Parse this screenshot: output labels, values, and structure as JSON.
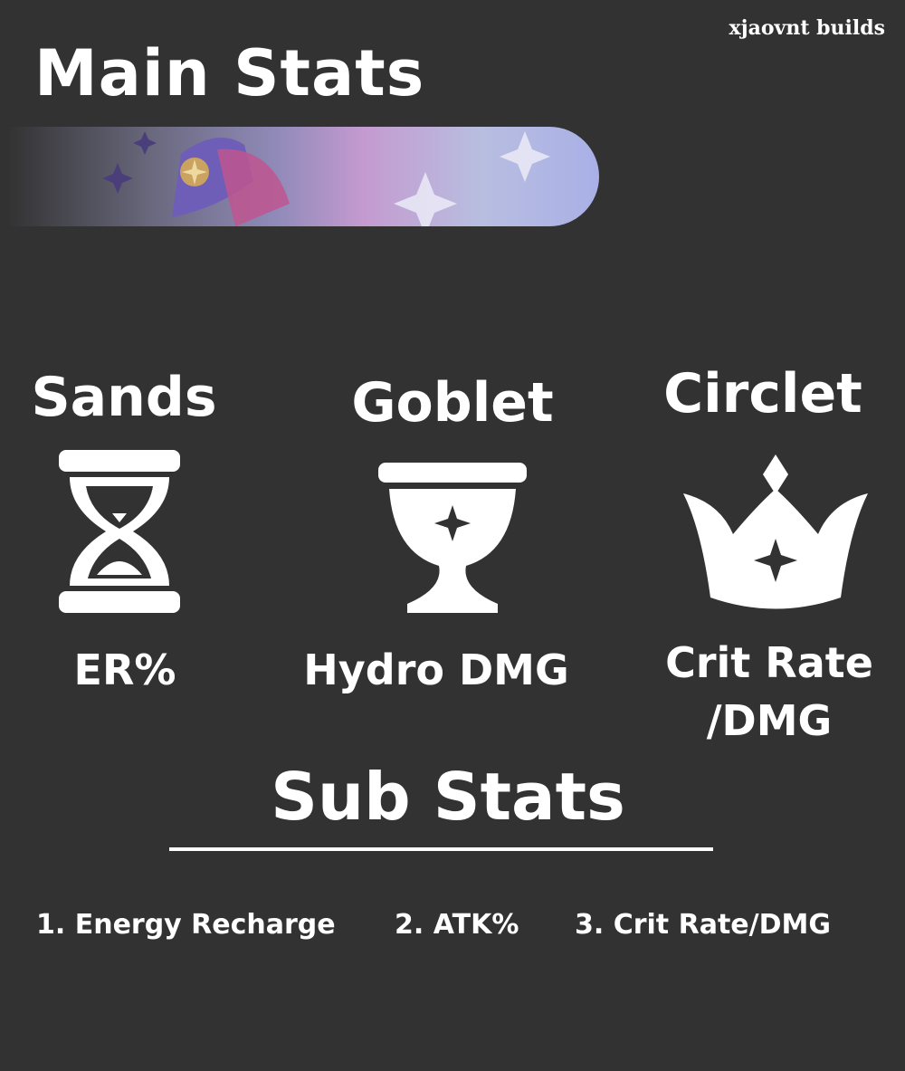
{
  "watermark": "xjaovnt builds",
  "title": "Main Stats",
  "main_stats": [
    {
      "slot": "Sands",
      "icon": "hourglass-icon",
      "stat": "ER%"
    },
    {
      "slot": "Goblet",
      "icon": "goblet-icon",
      "stat": "Hydro DMG"
    },
    {
      "slot": "Circlet",
      "icon": "crown-icon",
      "stat_line1": "Crit Rate",
      "stat_line2": "/DMG"
    }
  ],
  "sub_title": "Sub Stats",
  "sub_stats": [
    "1. Energy Recharge",
    "2. ATK%",
    "3. Crit Rate/DMG"
  ],
  "colors": {
    "background": "#323232",
    "text": "#ffffff"
  }
}
